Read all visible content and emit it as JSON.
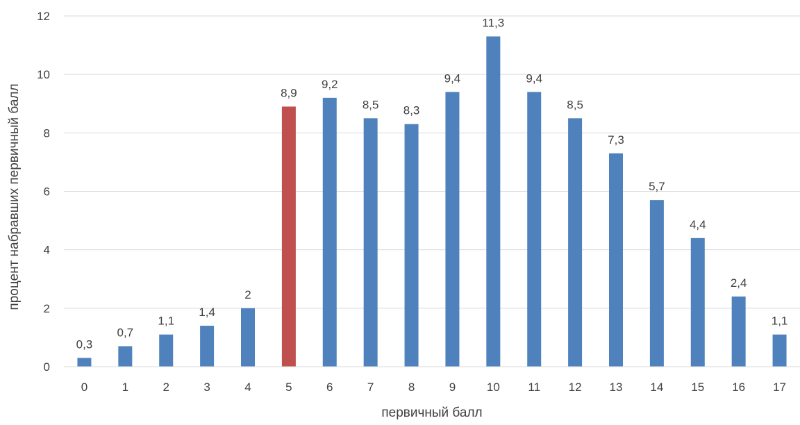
{
  "chart_data": {
    "type": "bar",
    "title": "",
    "xlabel": "первичный балл",
    "ylabel": "процент набравших первичный балл",
    "categories": [
      "0",
      "1",
      "2",
      "3",
      "4",
      "5",
      "6",
      "7",
      "8",
      "9",
      "10",
      "11",
      "12",
      "13",
      "14",
      "15",
      "16",
      "17"
    ],
    "values": [
      0.3,
      0.7,
      1.1,
      1.4,
      2,
      8.9,
      9.2,
      8.5,
      8.3,
      9.4,
      11.3,
      9.4,
      8.5,
      7.3,
      5.7,
      4.4,
      2.4,
      1.1
    ],
    "data_labels": [
      "0,3",
      "0,7",
      "1,1",
      "1,4",
      "2",
      "8,9",
      "9,2",
      "8,5",
      "8,3",
      "9,4",
      "11,3",
      "9,4",
      "8,5",
      "7,3",
      "5,7",
      "4,4",
      "2,4",
      "1,1"
    ],
    "highlight_index": 5,
    "ylim": [
      0,
      12
    ],
    "yticks": [
      "0",
      "2",
      "4",
      "6",
      "8",
      "10",
      "12"
    ],
    "grid": true,
    "legend": "none",
    "colors": {
      "bar": "#4f81bd",
      "highlight": "#c0504d",
      "grid": "#d9d9d9",
      "text": "#404040"
    }
  }
}
